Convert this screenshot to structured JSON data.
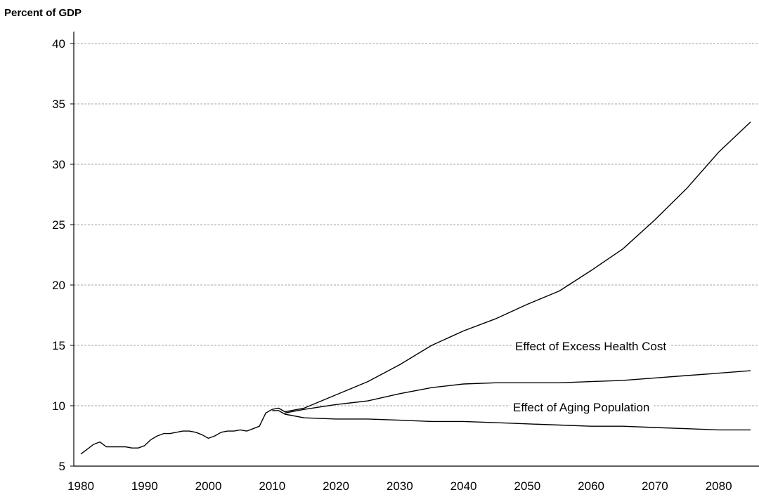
{
  "chart_data": {
    "type": "line",
    "ylabel": "Percent of GDP",
    "xlabel": "",
    "title": "",
    "xlim": [
      1980,
      2085
    ],
    "ylim": [
      5,
      40
    ],
    "x_ticks": [
      1980,
      1990,
      2000,
      2010,
      2020,
      2030,
      2040,
      2050,
      2060,
      2070,
      2080
    ],
    "y_ticks": [
      5,
      10,
      15,
      20,
      25,
      30,
      35,
      40
    ],
    "grid": "horizontal dashed",
    "annotations": [
      "Effect of Excess Health Cost",
      "Effect of Aging Population"
    ],
    "series": [
      {
        "x": [
          1980,
          1981,
          1982,
          1983,
          1984,
          1985,
          1986,
          1987,
          1988,
          1989,
          1990,
          1991,
          1992,
          1993,
          1994,
          1995,
          1996,
          1997,
          1998,
          1999,
          2000,
          2001,
          2002,
          2003,
          2004,
          2005,
          2006,
          2007,
          2008,
          2009,
          2010,
          2011,
          2012,
          2015,
          2020,
          2025,
          2030,
          2035,
          2040,
          2045,
          2050,
          2055,
          2060,
          2065,
          2070,
          2075,
          2080,
          2085
        ],
        "values": [
          6.0,
          6.4,
          6.8,
          7.0,
          6.6,
          6.6,
          6.6,
          6.6,
          6.5,
          6.5,
          6.7,
          7.2,
          7.5,
          7.7,
          7.7,
          7.8,
          7.9,
          7.9,
          7.8,
          7.6,
          7.3,
          7.5,
          7.8,
          7.9,
          7.9,
          8.0,
          7.9,
          8.1,
          8.3,
          9.4,
          9.7,
          9.8,
          9.5,
          9.8,
          10.9,
          12.0,
          13.4,
          15.0,
          16.2,
          17.2,
          18.4,
          19.5,
          21.2,
          23.0,
          25.4,
          28.0,
          31.0,
          33.5
        ]
      },
      {
        "x": [
          2012,
          2015,
          2020,
          2025,
          2030,
          2035,
          2040,
          2045,
          2050,
          2055,
          2060,
          2065,
          2070,
          2075,
          2080,
          2085
        ],
        "values": [
          9.4,
          9.7,
          10.1,
          10.4,
          11.0,
          11.5,
          11.8,
          11.9,
          11.9,
          11.9,
          12.0,
          12.1,
          12.3,
          12.5,
          12.7,
          12.9
        ]
      },
      {
        "x": [
          2010,
          2011,
          2012,
          2015,
          2020,
          2025,
          2030,
          2035,
          2040,
          2045,
          2050,
          2055,
          2060,
          2065,
          2070,
          2075,
          2080,
          2085
        ],
        "values": [
          9.6,
          9.6,
          9.3,
          9.0,
          8.9,
          8.9,
          8.8,
          8.7,
          8.7,
          8.6,
          8.5,
          8.4,
          8.3,
          8.3,
          8.2,
          8.1,
          8.0,
          8.0
        ]
      }
    ]
  }
}
